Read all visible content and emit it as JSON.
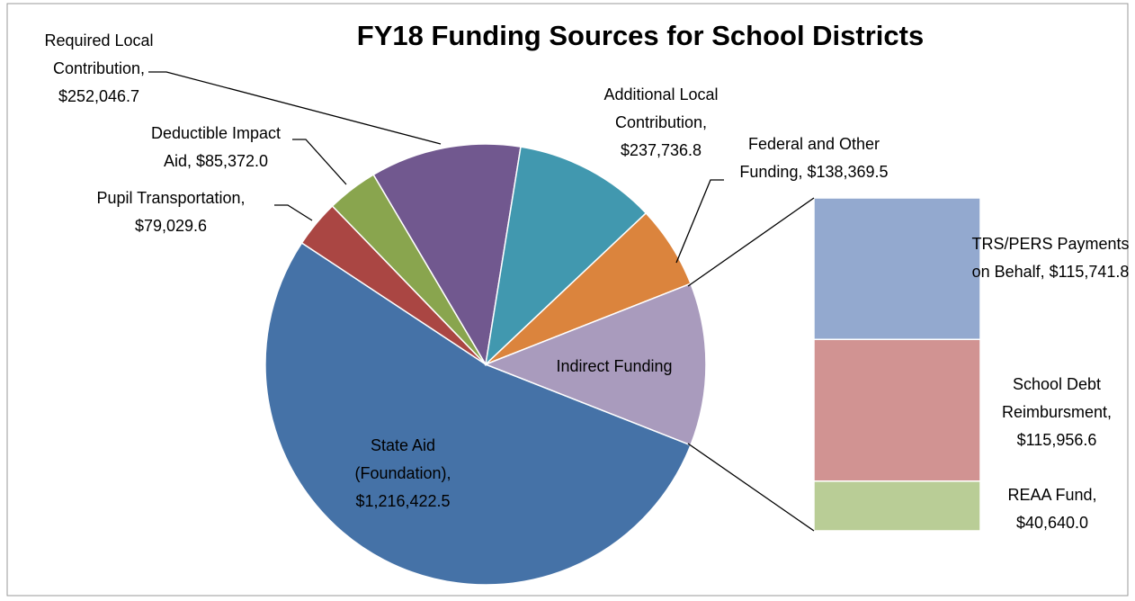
{
  "chart_data": {
    "type": "pie-of-bar",
    "title": "FY18 Funding Sources for School Districts",
    "categories": [
      "State Aid (Foundation),",
      "Pupil Transportation,",
      "Deductible Impact Aid,",
      "Required Local Contribution,",
      "Additional Local Contribution,",
      "Federal and Other Funding,",
      "Indirect Funding"
    ],
    "values": [
      1216422.5,
      79029.6,
      85372.0,
      252046.7,
      237736.8,
      138369.5,
      272338.4
    ],
    "value_labels": [
      "$1,216,422.5",
      "$79,029.6",
      "$85,372.0",
      "$252,046.7",
      "$237,736.8",
      "$138,369.5",
      null
    ],
    "colors": [
      "#4572a7",
      "#aa4643",
      "#89a54e",
      "#71588f",
      "#4198af",
      "#db843d",
      "#a99bbd"
    ],
    "bar": {
      "categories": [
        "TRS/PERS Payments on Behalf,",
        "School Debt Reimbursment,",
        "REAA Fund,"
      ],
      "values": [
        115741.8,
        115956.6,
        40640.0
      ],
      "value_labels": [
        "$115,741.8",
        "$115,956.6",
        "$40,640.0"
      ],
      "colors": [
        "#93a9cf",
        "#d19392",
        "#b9cd96"
      ]
    }
  }
}
